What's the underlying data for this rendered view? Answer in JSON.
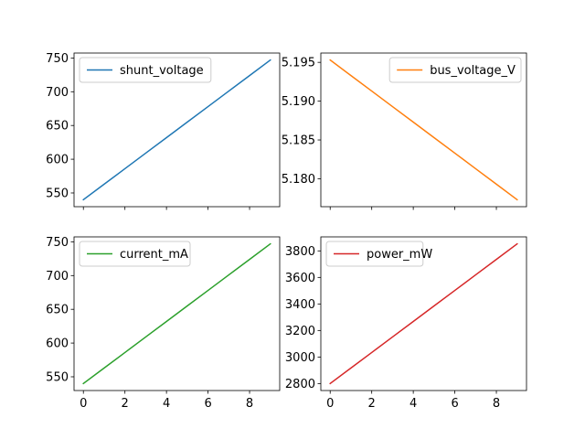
{
  "chart_data": [
    {
      "type": "line",
      "x": [
        0,
        1,
        2,
        3,
        4,
        5,
        6,
        7,
        8,
        9
      ],
      "series": [
        {
          "name": "shunt_voltage",
          "values": [
            540,
            563,
            586,
            609,
            632,
            655,
            678,
            701,
            724,
            747
          ],
          "color": "#1f77b4"
        }
      ],
      "xticks": [
        0,
        2,
        4,
        6,
        8
      ],
      "yticks": [
        550,
        600,
        650,
        700,
        750
      ],
      "xticklabels": [
        "",
        "",
        "",
        "",
        ""
      ],
      "yticklabels": [
        "550",
        "600",
        "650",
        "700",
        "750"
      ],
      "xlim": [
        -0.45,
        9.45
      ],
      "ylim": [
        529.65,
        757.35
      ],
      "legend": "top-left"
    },
    {
      "type": "line",
      "x": [
        0,
        1,
        2,
        3,
        4,
        5,
        6,
        7,
        8,
        9
      ],
      "series": [
        {
          "name": "bus_voltage_V",
          "values": [
            5.1953,
            5.1933,
            5.1913,
            5.1893,
            5.1873,
            5.1853,
            5.1833,
            5.1813,
            5.1793,
            5.1773
          ],
          "color": "#ff7f0e"
        }
      ],
      "xticks": [
        0,
        2,
        4,
        6,
        8
      ],
      "yticks": [
        5.18,
        5.185,
        5.19,
        5.195
      ],
      "xticklabels": [
        "",
        "",
        "",
        "",
        ""
      ],
      "yticklabels": [
        "5.180",
        "5.185",
        "5.190",
        "5.195"
      ],
      "xlim": [
        -0.45,
        9.45
      ],
      "ylim": [
        5.1764,
        5.1962
      ],
      "legend": "top-right"
    },
    {
      "type": "line",
      "x": [
        0,
        1,
        2,
        3,
        4,
        5,
        6,
        7,
        8,
        9
      ],
      "series": [
        {
          "name": "current_mA",
          "values": [
            540,
            563,
            586,
            609,
            632,
            655,
            678,
            701,
            724,
            747
          ],
          "color": "#2ca02c"
        }
      ],
      "xticks": [
        0,
        2,
        4,
        6,
        8
      ],
      "yticks": [
        550,
        600,
        650,
        700,
        750
      ],
      "xticklabels": [
        "0",
        "2",
        "4",
        "6",
        "8"
      ],
      "yticklabels": [
        "550",
        "600",
        "650",
        "700",
        "750"
      ],
      "xlim": [
        -0.45,
        9.45
      ],
      "ylim": [
        529.65,
        757.35
      ],
      "legend": "top-left"
    },
    {
      "type": "line",
      "x": [
        0,
        1,
        2,
        3,
        4,
        5,
        6,
        7,
        8,
        9
      ],
      "series": [
        {
          "name": "power_mW",
          "values": [
            2800,
            2917,
            3034,
            3151,
            3268,
            3385,
            3502,
            3619,
            3736,
            3853
          ],
          "color": "#d62728"
        }
      ],
      "xticks": [
        0,
        2,
        4,
        6,
        8
      ],
      "yticks": [
        2800,
        3000,
        3200,
        3400,
        3600,
        3800
      ],
      "xticklabels": [
        "0",
        "2",
        "4",
        "6",
        "8"
      ],
      "yticklabels": [
        "2800",
        "3000",
        "3200",
        "3400",
        "3600",
        "3800"
      ],
      "xlim": [
        -0.45,
        9.45
      ],
      "ylim": [
        2747.35,
        3905.65
      ],
      "legend": "top-left"
    }
  ]
}
